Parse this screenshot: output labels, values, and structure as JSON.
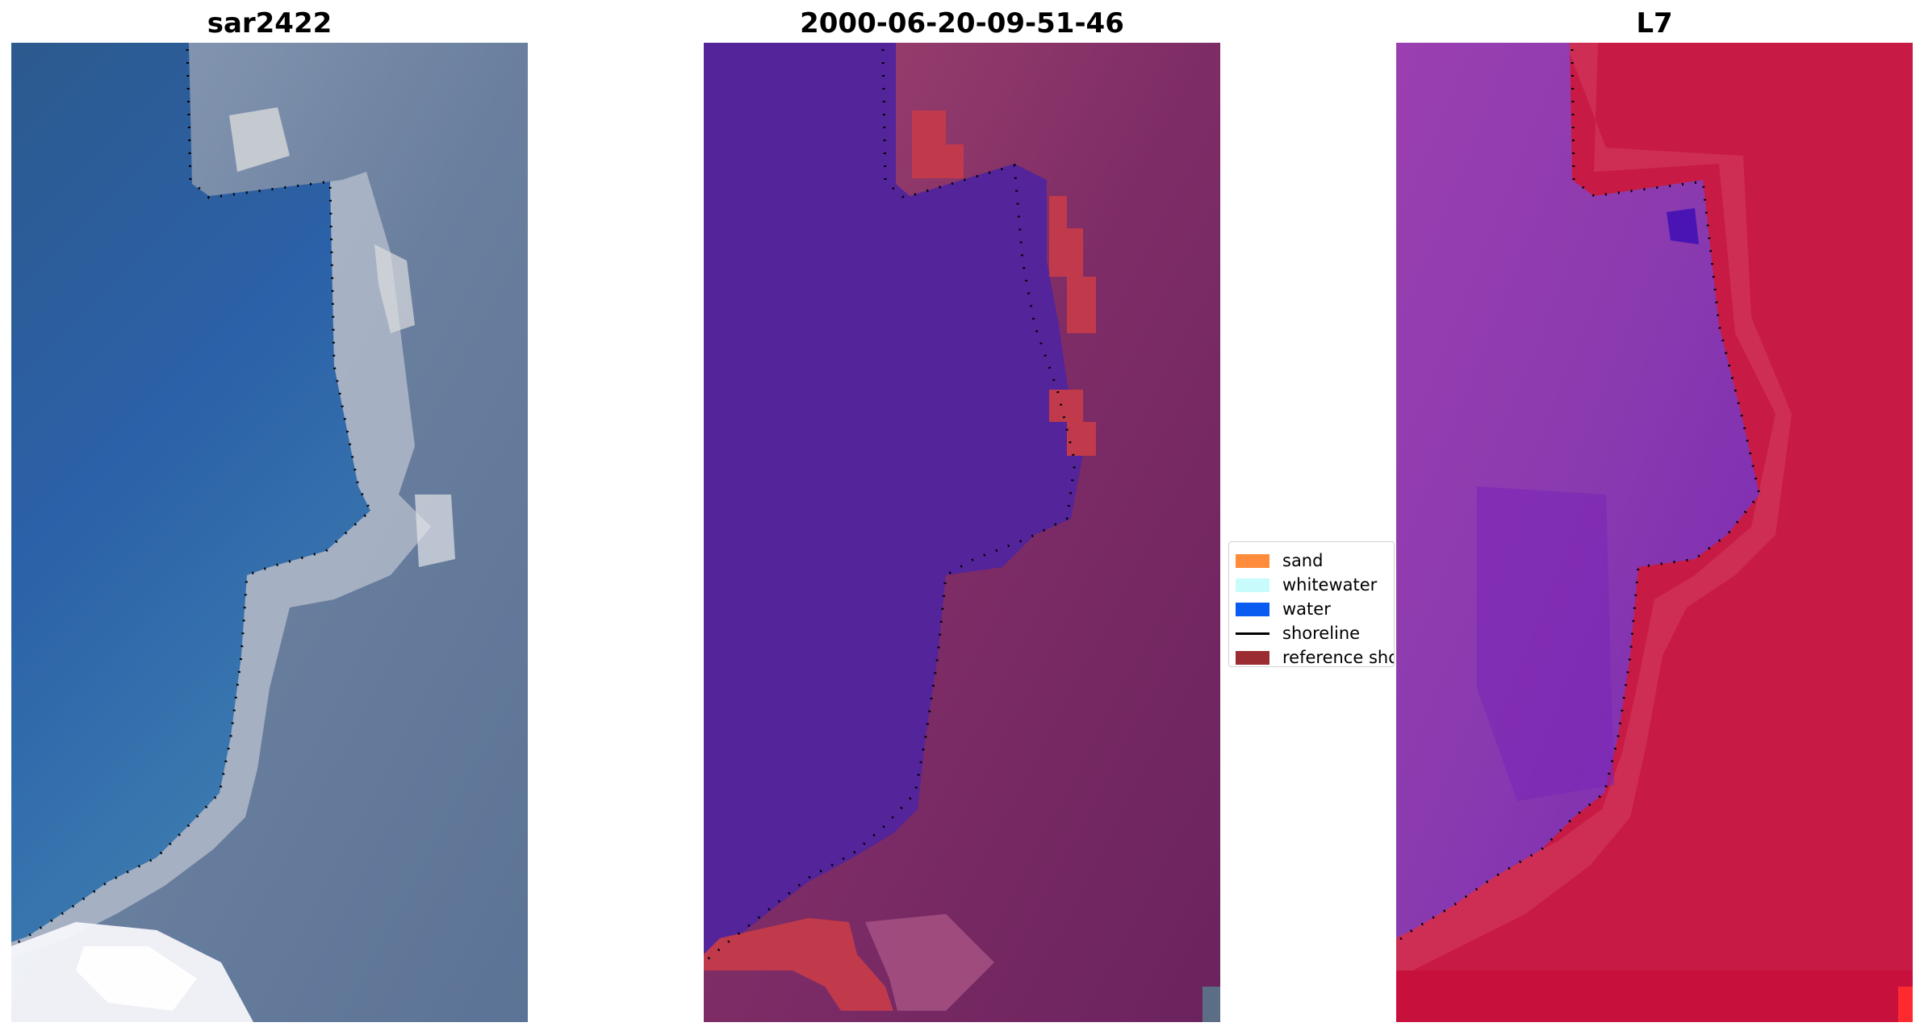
{
  "panels": [
    {
      "title": "sar2422"
    },
    {
      "title": "2000-06-20-09-51-46"
    },
    {
      "title": "L7"
    }
  ],
  "legend": {
    "items": [
      {
        "label": "sand",
        "color": "#ff8c3a"
      },
      {
        "label": "whitewater",
        "color": "#c8fcfc"
      },
      {
        "label": "water",
        "color": "#0a5cf0"
      },
      {
        "label": "shoreline",
        "color": "#000000"
      },
      {
        "label": "reference shoreline",
        "color": "#9b2d32"
      }
    ]
  },
  "colors": {
    "rgb_water": "#2f5fa0",
    "rgb_land": "#6f84a3",
    "classified_water": "#54249a",
    "classified_land": "#7e2c66",
    "classified_sand": "#c03a4c",
    "mndwi_water": "#8f3fae",
    "mndwi_land": "#c71a44"
  }
}
